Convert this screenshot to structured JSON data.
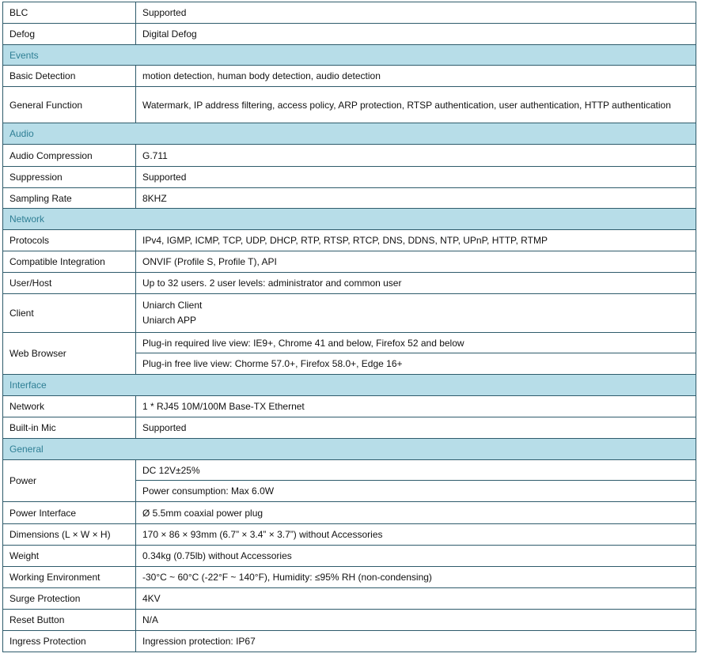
{
  "rows": [
    {
      "type": "row",
      "label": "BLC",
      "values": [
        "Supported"
      ],
      "h": 27
    },
    {
      "type": "row",
      "label": "Defog",
      "values": [
        "Digital Defog"
      ],
      "h": 27
    },
    {
      "type": "section",
      "label": "Events",
      "h": 26
    },
    {
      "type": "row",
      "label": "Basic Detection",
      "values": [
        "motion detection, human body detection, audio detection"
      ],
      "h": 27
    },
    {
      "type": "row",
      "label": "General Function",
      "values": [
        "Watermark, IP address filtering, access policy, ARP protection, RTSP authentication, user authentication, HTTP authentication"
      ],
      "h": 46
    },
    {
      "type": "section",
      "label": "Audio",
      "h": 27
    },
    {
      "type": "row",
      "label": "Audio Compression",
      "values": [
        "G.711"
      ],
      "h": 28
    },
    {
      "type": "row",
      "label": "Suppression",
      "values": [
        "Supported"
      ],
      "h": 27
    },
    {
      "type": "row",
      "label": "Sampling Rate",
      "values": [
        "8KHZ"
      ],
      "h": 26
    },
    {
      "type": "section",
      "label": "Network",
      "h": 27
    },
    {
      "type": "row",
      "label": "Protocols",
      "values": [
        "IPv4, IGMP, ICMP, TCP, UDP, DHCP, RTP, RTSP, RTCP, DNS, DDNS, NTP, UPnP, HTTP, RTMP"
      ],
      "h": 27
    },
    {
      "type": "row",
      "label": "Compatible Integration",
      "values": [
        "ONVIF (Profile S, Profile T), API"
      ],
      "h": 27
    },
    {
      "type": "row",
      "label": "User/Host",
      "values": [
        "Up to 32 users. 2 user levels: administrator and common user"
      ],
      "h": 27
    },
    {
      "type": "lines",
      "label": "Client",
      "values": [
        "Uniarch Client",
        "Uniarch APP"
      ],
      "h": 49
    },
    {
      "type": "split",
      "label": "Web Browser",
      "values": [
        "Plug-in required live view: IE9+, Chrome 41 and below, Firefox 52 and below",
        "Plug-in free live view: Chorme 57.0+, Firefox 58.0+, Edge 16+"
      ],
      "h": 26
    },
    {
      "type": "section",
      "label": "Interface",
      "h": 27
    },
    {
      "type": "row",
      "label": "Network",
      "values": [
        "1 * RJ45 10M/100M Base-TX Ethernet"
      ],
      "h": 27
    },
    {
      "type": "row",
      "label": "Built-in Mic",
      "values": [
        "Supported"
      ],
      "h": 27
    },
    {
      "type": "section",
      "label": "General",
      "h": 27
    },
    {
      "type": "split",
      "label": "Power",
      "values": [
        "DC 12V±25%",
        "Power consumption: Max 6.0W"
      ],
      "h": 26
    },
    {
      "type": "row",
      "label": "Power Interface",
      "values": [
        "Ø 5.5mm coaxial power plug"
      ],
      "h": 28
    },
    {
      "type": "row",
      "label": "Dimensions (L × W × H)",
      "values": [
        "170 × 86 × 93mm (6.7” × 3.4” × 3.7”) without Accessories"
      ],
      "h": 27
    },
    {
      "type": "row",
      "label": "Weight",
      "values": [
        "0.34kg (0.75lb) without Accessories"
      ],
      "h": 27
    },
    {
      "type": "row",
      "label": "Working Environment",
      "values": [
        "-30°C ~ 60°C (-22°F ~ 140°F), Humidity: ≤95% RH (non-condensing)"
      ],
      "h": 27
    },
    {
      "type": "row",
      "label": "Surge Protection",
      "values": [
        "4KV"
      ],
      "h": 27
    },
    {
      "type": "row",
      "label": "Reset Button",
      "values": [
        "N/A"
      ],
      "h": 27
    },
    {
      "type": "row",
      "label": "Ingress Protection",
      "values": [
        "Ingression protection: IP67"
      ],
      "h": 27
    }
  ],
  "colors": {
    "section_bg": "#b7dde8",
    "section_text": "#2f7f95",
    "border": "#2e5b6b"
  }
}
